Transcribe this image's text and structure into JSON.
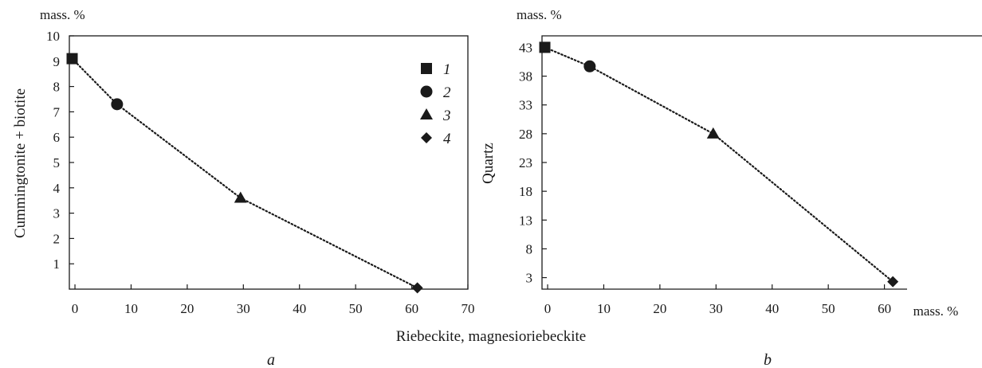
{
  "chart_data": [
    {
      "panel": "a",
      "type": "scatter",
      "x_unit_label": "",
      "y_unit_label": "mass. %",
      "ylabel": "Cummingtonite + biotite",
      "xlim": [
        -1,
        70
      ],
      "ylim": [
        0,
        10
      ],
      "x_ticks": [
        "0",
        "10",
        "20",
        "30",
        "40",
        "50",
        "60",
        "70"
      ],
      "y_ticks": [
        "1",
        "2",
        "3",
        "4",
        "5",
        "6",
        "7",
        "8",
        "9",
        "10"
      ],
      "series": [
        {
          "name": "1",
          "marker": "square",
          "x": [
            -0.5
          ],
          "y": [
            9.1
          ]
        },
        {
          "name": "2",
          "marker": "circle",
          "x": [
            7.5
          ],
          "y": [
            7.3
          ]
        },
        {
          "name": "3",
          "marker": "triangle",
          "x": [
            29.5
          ],
          "y": [
            3.6
          ]
        },
        {
          "name": "4",
          "marker": "diamond",
          "x": [
            61
          ],
          "y": [
            0.05
          ]
        }
      ],
      "trend_line": {
        "style": "dotted",
        "x": [
          -0.5,
          7.5,
          29.5,
          61
        ],
        "y": [
          9.1,
          7.3,
          3.6,
          0.05
        ]
      },
      "legend": {
        "placement": "top-right",
        "labels": [
          "1",
          "2",
          "3",
          "4"
        ]
      }
    },
    {
      "panel": "b",
      "type": "scatter",
      "x_unit_label": "mass. %",
      "y_unit_label": "mass. %",
      "ylabel": "Quartz",
      "xlim": [
        -1,
        70
      ],
      "ylim": [
        1,
        45
      ],
      "x_ticks": [
        "0",
        "10",
        "20",
        "30",
        "40",
        "50",
        "60"
      ],
      "y_ticks": [
        "3",
        "8",
        "13",
        "18",
        "23",
        "28",
        "33",
        "38",
        "43"
      ],
      "series": [
        {
          "name": "1",
          "marker": "square",
          "x": [
            -0.5
          ],
          "y": [
            43
          ]
        },
        {
          "name": "2",
          "marker": "circle",
          "x": [
            7.5
          ],
          "y": [
            39.7
          ]
        },
        {
          "name": "3",
          "marker": "triangle",
          "x": [
            29.5
          ],
          "y": [
            28
          ]
        },
        {
          "name": "4",
          "marker": "diamond",
          "x": [
            61.5
          ],
          "y": [
            2.3
          ]
        }
      ],
      "trend_line": {
        "style": "dotted",
        "x": [
          -0.5,
          7.5,
          29.5,
          61.5
        ],
        "y": [
          43,
          39.7,
          28,
          2.3
        ]
      }
    }
  ],
  "shared_xlabel": "Riebeckite, magnesioriebeckite",
  "panel_labels": [
    "a",
    "b"
  ]
}
